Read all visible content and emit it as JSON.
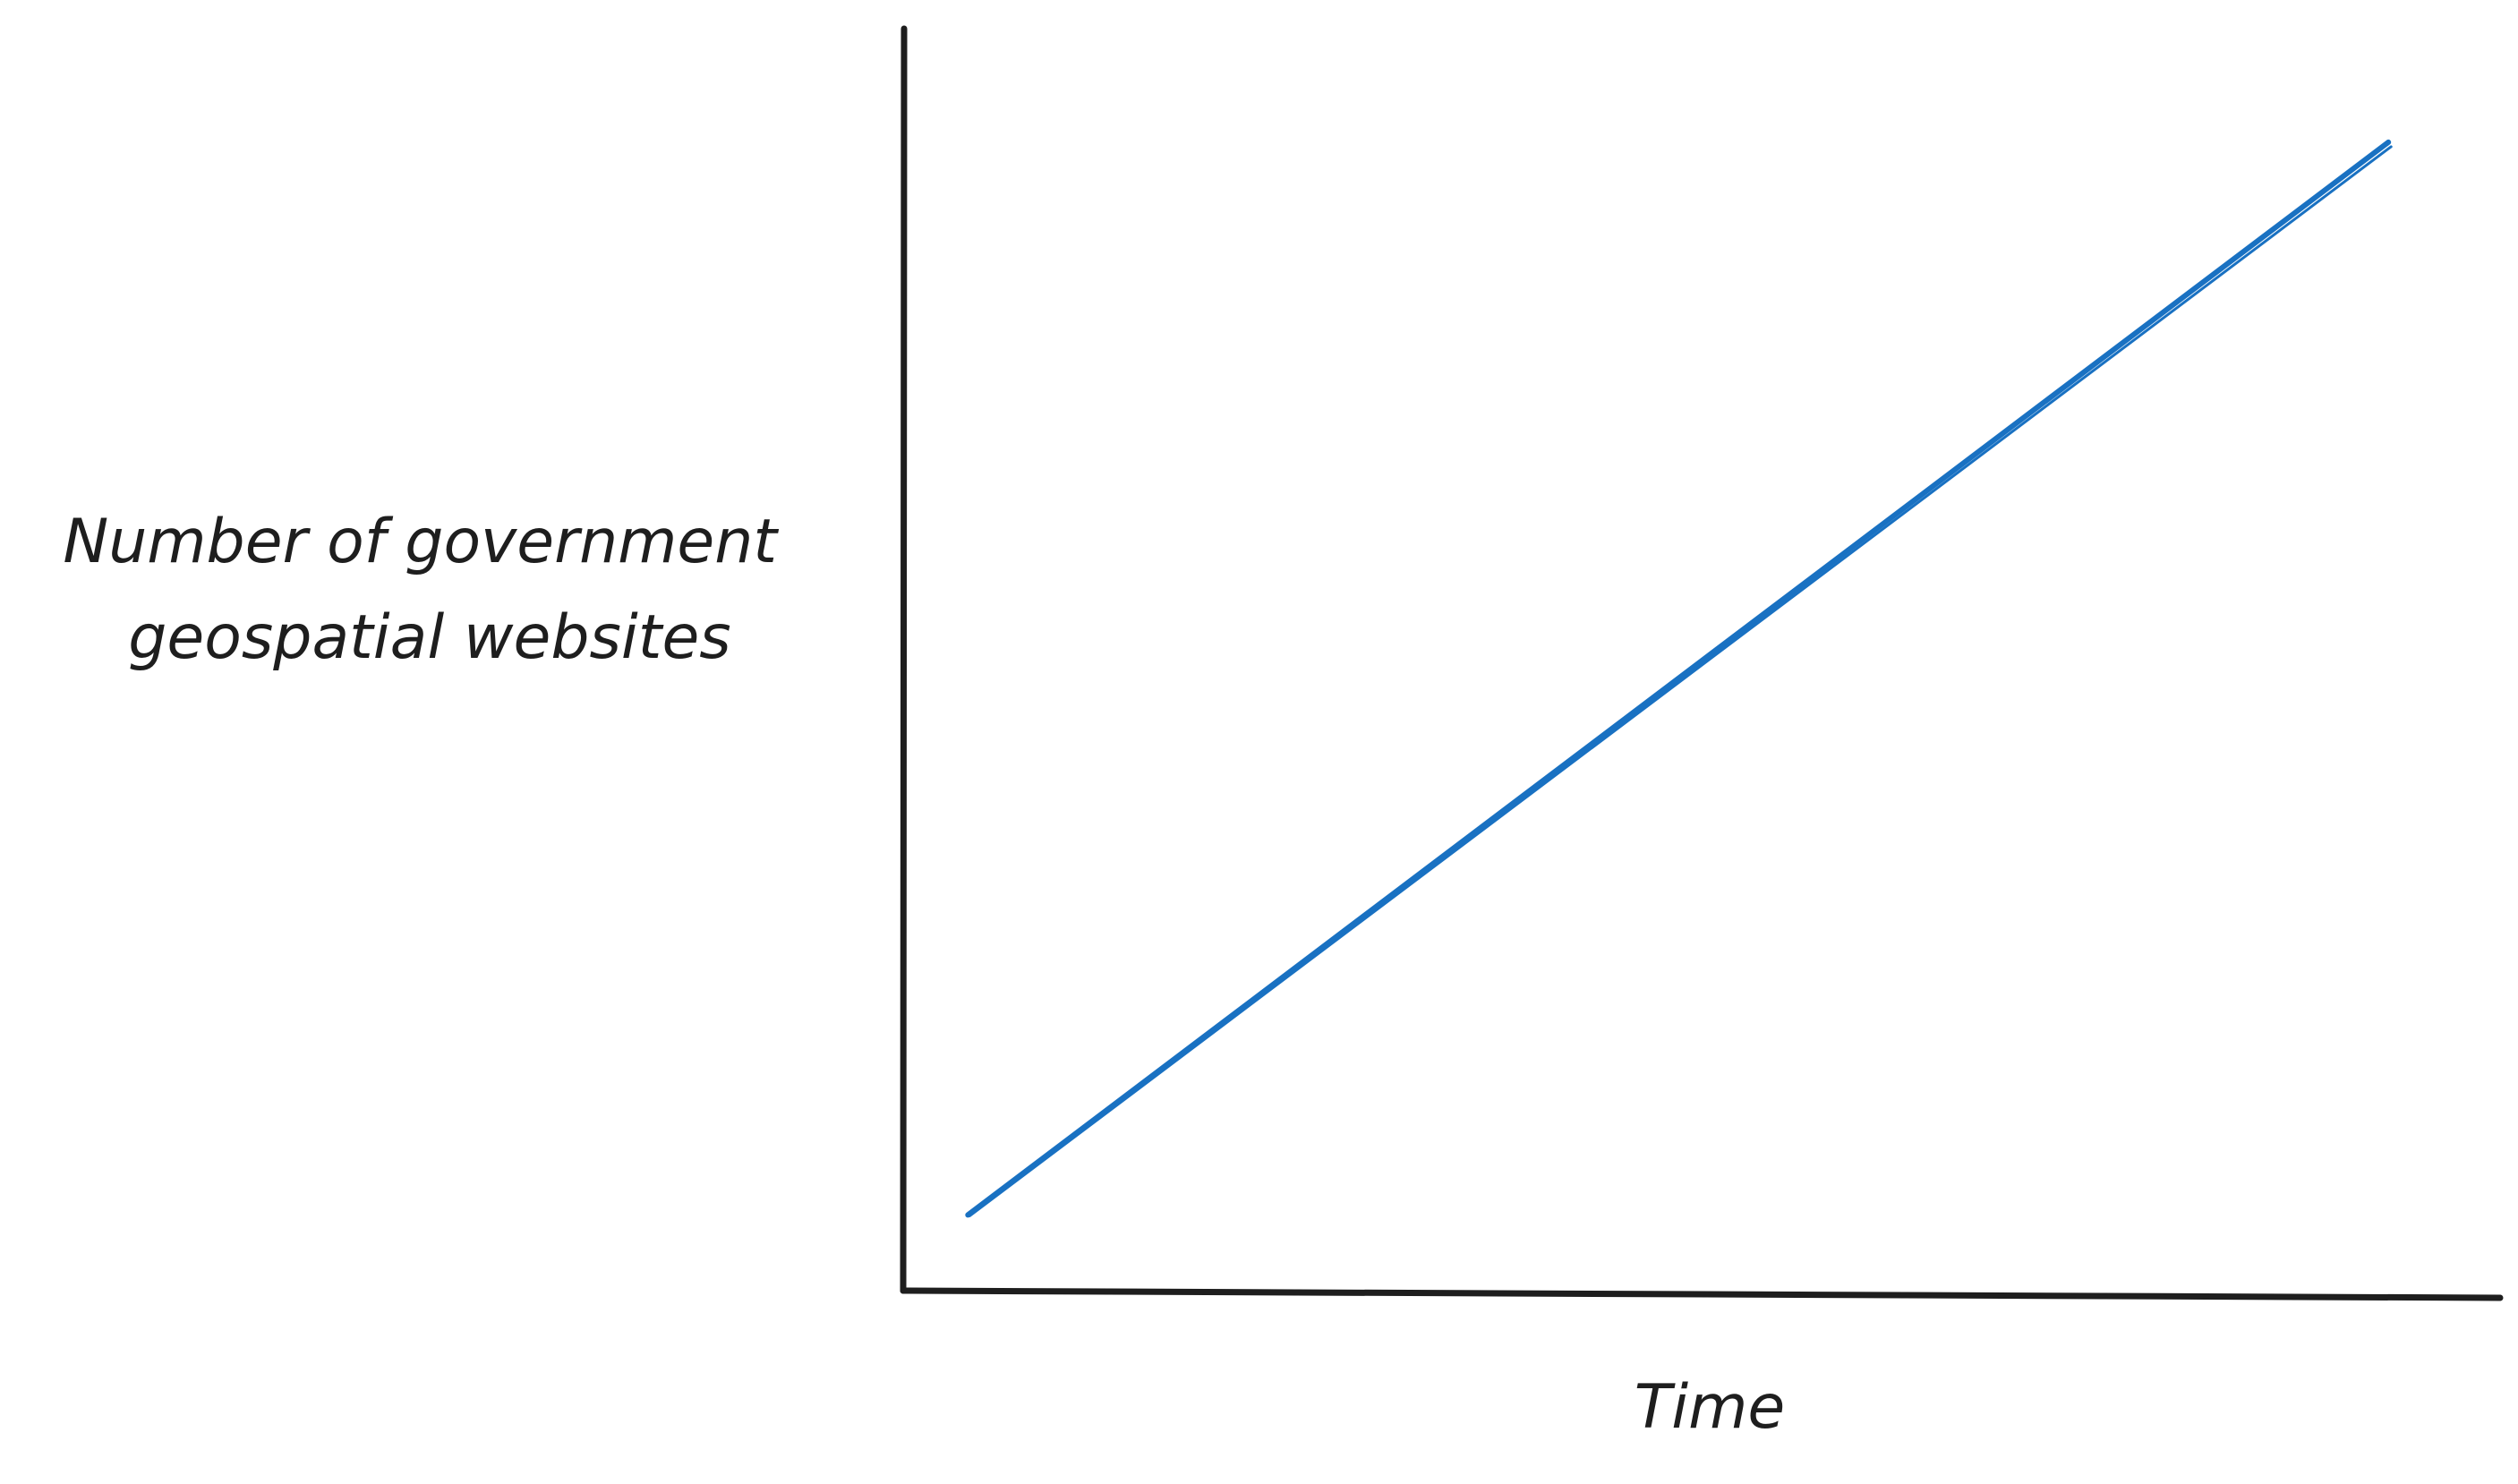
{
  "chart_data": {
    "type": "line",
    "title": "",
    "xlabel": "Time",
    "ylabel_lines": [
      "Number of government",
      "geospatial websites"
    ],
    "x_ticks": [],
    "y_ticks": [],
    "grid": false,
    "legend": "none",
    "xlim": [
      0,
      1
    ],
    "ylim": [
      0,
      1
    ],
    "series": [
      {
        "x": [
          0.04,
          0.93
        ],
        "values": [
          0.06,
          0.91
        ],
        "color": "#1971c2"
      }
    ]
  }
}
